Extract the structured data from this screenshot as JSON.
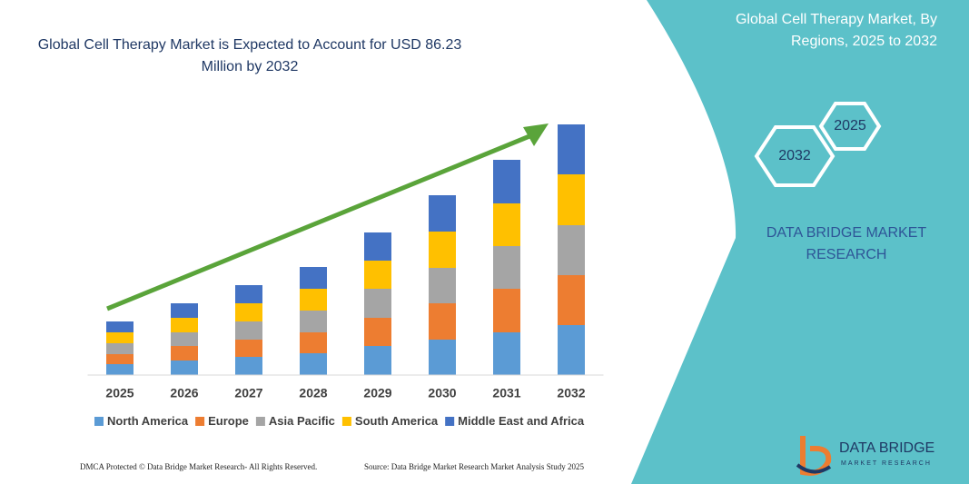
{
  "chart_data": {
    "type": "stacked_bar",
    "title": [
      "Global Cell Therapy Market is Expected to Account for USD 86.23",
      "Million by 2032"
    ],
    "categories": [
      "2025",
      "2026",
      "2027",
      "2028",
      "2029",
      "2030",
      "2031",
      "2032"
    ],
    "series": [
      {
        "name": "North America",
        "color": "#5b9bd5",
        "values": [
          12,
          16,
          20,
          24,
          32,
          39,
          47,
          55
        ]
      },
      {
        "name": "Europe",
        "color": "#ed7d31",
        "values": [
          11,
          16,
          19,
          23,
          31,
          40,
          48,
          55
        ]
      },
      {
        "name": "Asia Pacific",
        "color": "#a5a5a5",
        "values": [
          12,
          15,
          20,
          24,
          32,
          39,
          47,
          55
        ]
      },
      {
        "name": "South America",
        "color": "#ffc000",
        "values": [
          12,
          16,
          20,
          24,
          31,
          40,
          47,
          56
        ]
      },
      {
        "name": "Middle East and Africa",
        "color": "#4472c4",
        "values": [
          12,
          16,
          20,
          24,
          31,
          40,
          48,
          55
        ]
      }
    ],
    "ylim": [
      0,
      276
    ],
    "legend": "bottom"
  },
  "panel": {
    "title": [
      "Global Cell Therapy Market, By",
      "Regions, 2025 to 2032"
    ],
    "hex_start": "2025",
    "hex_end": "2032",
    "brand": [
      "DATA BRIDGE MARKET",
      "RESEARCH"
    ],
    "logo_name": "DATA BRIDGE",
    "logo_sub": "MARKET RESEARCH"
  },
  "footer": {
    "left": "DMCA Protected © Data Bridge Market Research- All Rights Reserved.",
    "right": "Source: Data Bridge Market Research Market Analysis Study 2025"
  }
}
